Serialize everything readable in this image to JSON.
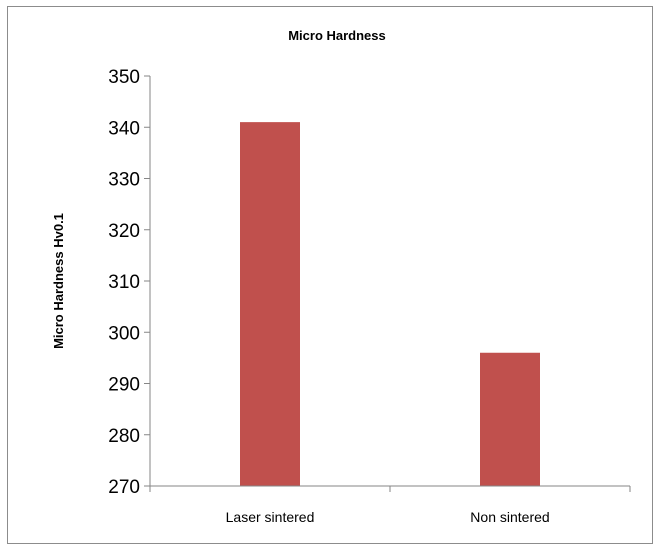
{
  "chart_data": {
    "type": "bar",
    "title": "Micro Hardness",
    "xlabel": "",
    "ylabel": "Micro Hardness Hv0.1",
    "categories": [
      "Laser sintered",
      "Non sintered"
    ],
    "values": [
      341,
      296
    ],
    "ylim": [
      270,
      350
    ],
    "yticks": [
      270,
      280,
      290,
      300,
      310,
      320,
      330,
      340,
      350
    ],
    "grid": false,
    "legend": "none",
    "bar_color": "#c0504d",
    "axis_color": "#868686"
  }
}
